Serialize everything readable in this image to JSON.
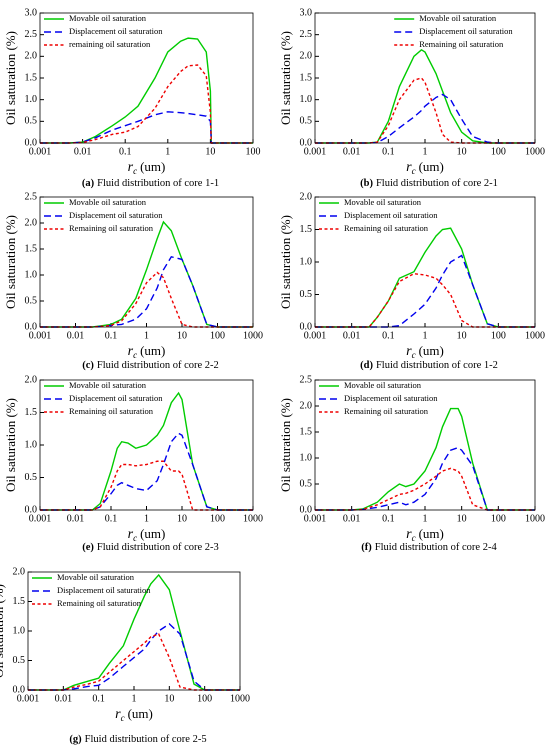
{
  "chart_data": [
    {
      "type": "line",
      "label": "(a)",
      "caption": "Fluid distribution of core 1-1",
      "ylabel": "Oil saturation (%)",
      "xlabel_var": "r",
      "xlabel_sub": "c",
      "xlabel_unit": "(um)",
      "xlog": true,
      "legend": "upper left",
      "xlim": [
        0.001,
        100
      ],
      "xticks": [
        0.001,
        0.01,
        0.1,
        1,
        10,
        100
      ],
      "ylim": [
        0,
        3
      ],
      "yticks": [
        {
          "value": 0,
          "label": "0.0"
        },
        {
          "value": 0.5,
          "label": "0.5"
        },
        {
          "value": 1,
          "label": "1.0"
        },
        {
          "value": 1.5,
          "label": "1.5"
        },
        {
          "value": 2,
          "label": "2.0"
        },
        {
          "value": 2.5,
          "label": "2.5"
        },
        {
          "value": 3,
          "label": "3.0"
        }
      ],
      "x": [
        0.001,
        0.005,
        0.01,
        0.02,
        0.05,
        0.1,
        0.2,
        0.5,
        1,
        2,
        3,
        5,
        8,
        10,
        10.5,
        20,
        100
      ],
      "series": [
        {
          "name": "Movable oil saturation",
          "color": "#00cc00",
          "linestyle": "solid",
          "values": [
            0,
            0,
            0.02,
            0.15,
            0.4,
            0.6,
            0.85,
            1.5,
            2.1,
            2.35,
            2.42,
            2.4,
            2.1,
            1.2,
            0,
            0,
            0
          ]
        },
        {
          "name": "Displacement oil saturation",
          "color": "#0000ee",
          "linestyle": "dashed",
          "values": [
            0,
            0,
            0.02,
            0.12,
            0.3,
            0.4,
            0.5,
            0.65,
            0.72,
            0.7,
            0.68,
            0.65,
            0.62,
            0.5,
            0,
            0,
            0
          ]
        },
        {
          "name": "remaining oil saturation",
          "color": "#ee0000",
          "linestyle": "dotted",
          "values": [
            0,
            0,
            0.01,
            0.08,
            0.2,
            0.25,
            0.38,
            0.8,
            1.3,
            1.65,
            1.78,
            1.8,
            1.55,
            0.7,
            0,
            0,
            0
          ]
        }
      ]
    },
    {
      "type": "line",
      "label": "(b)",
      "caption": "Fluid distribution of core 2-1",
      "ylabel": "Oil saturation (%)",
      "xlabel_var": "r",
      "xlabel_sub": "c",
      "xlabel_unit": "(um)",
      "xlog": true,
      "legend": "upper right",
      "xlim": [
        0.001,
        1000
      ],
      "xticks": [
        0.001,
        0.01,
        0.1,
        1,
        10,
        100,
        1000
      ],
      "ylim": [
        0,
        3
      ],
      "yticks": [
        {
          "value": 0,
          "label": "0.0"
        },
        {
          "value": 0.5,
          "label": "0.5"
        },
        {
          "value": 1,
          "label": "1.0"
        },
        {
          "value": 1.5,
          "label": "1.5"
        },
        {
          "value": 2,
          "label": "2.0"
        },
        {
          "value": 2.5,
          "label": "2.5"
        },
        {
          "value": 3,
          "label": "3.0"
        }
      ],
      "x": [
        0.001,
        0.03,
        0.05,
        0.1,
        0.2,
        0.5,
        0.8,
        1,
        2,
        3,
        5,
        10,
        20,
        50,
        100,
        1000
      ],
      "series": [
        {
          "name": "Movable oil saturation",
          "color": "#00cc00",
          "linestyle": "solid",
          "values": [
            0,
            0,
            0.02,
            0.5,
            1.3,
            2.0,
            2.15,
            2.1,
            1.6,
            1.2,
            0.7,
            0.25,
            0.05,
            0,
            0,
            0
          ]
        },
        {
          "name": "Displacement oil saturation",
          "color": "#0000ee",
          "linestyle": "dashed",
          "values": [
            0,
            0,
            0.01,
            0.15,
            0.35,
            0.6,
            0.75,
            0.85,
            1.05,
            1.12,
            1.0,
            0.55,
            0.15,
            0.02,
            0,
            0
          ]
        },
        {
          "name": "Remaining oil saturation",
          "color": "#ee0000",
          "linestyle": "dotted",
          "values": [
            0,
            0,
            0.02,
            0.4,
            1.0,
            1.45,
            1.5,
            1.4,
            0.7,
            0.2,
            0.02,
            0,
            0,
            0,
            0,
            0
          ]
        }
      ]
    },
    {
      "type": "line",
      "label": "(c)",
      "caption": "Fluid distribution of core 2-2",
      "ylabel": "Oil saturation (%)",
      "xlabel_var": "r",
      "xlabel_sub": "c",
      "xlabel_unit": "(um)",
      "xlog": true,
      "legend": "upper left",
      "xlim": [
        0.001,
        1000
      ],
      "xticks": [
        0.001,
        0.01,
        0.1,
        1,
        10,
        100,
        1000
      ],
      "ylim": [
        0,
        2.5
      ],
      "yticks": [
        {
          "value": 0,
          "label": "0.0"
        },
        {
          "value": 0.5,
          "label": "0.5"
        },
        {
          "value": 1,
          "label": "1.0"
        },
        {
          "value": 1.5,
          "label": "1.5"
        },
        {
          "value": 2,
          "label": "2.0"
        },
        {
          "value": 2.5,
          "label": "2.5"
        }
      ],
      "x": [
        0.001,
        0.03,
        0.05,
        0.1,
        0.2,
        0.5,
        1,
        2,
        3,
        5,
        10,
        20,
        50,
        100,
        1000
      ],
      "series": [
        {
          "name": "Movable oil saturation",
          "color": "#00cc00",
          "linestyle": "solid",
          "values": [
            0,
            0,
            0.02,
            0.05,
            0.15,
            0.55,
            1.1,
            1.7,
            2.02,
            1.85,
            1.3,
            0.8,
            0.05,
            0,
            0
          ]
        },
        {
          "name": "Displacement oil saturation",
          "color": "#0000ee",
          "linestyle": "dashed",
          "values": [
            0,
            0,
            0.01,
            0.03,
            0.05,
            0.15,
            0.35,
            0.75,
            1.1,
            1.35,
            1.3,
            0.8,
            0.05,
            0,
            0
          ]
        },
        {
          "name": "Remaining oil saturation",
          "color": "#ee0000",
          "linestyle": "dotted",
          "values": [
            0,
            0,
            0.01,
            0.03,
            0.12,
            0.45,
            0.85,
            1.05,
            0.95,
            0.55,
            0.05,
            0,
            0,
            0,
            0
          ]
        }
      ]
    },
    {
      "type": "line",
      "label": "(d)",
      "caption": "Fluid distribution of core 1-2",
      "ylabel": "Oil saturation (%)",
      "xlabel_var": "r",
      "xlabel_sub": "c",
      "xlabel_unit": "(um)",
      "xlog": true,
      "legend": "upper left",
      "xlim": [
        0.001,
        1000
      ],
      "xticks": [
        0.001,
        0.01,
        0.1,
        1,
        10,
        100,
        1000
      ],
      "ylim": [
        0,
        2
      ],
      "yticks": [
        {
          "value": 0,
          "label": "0.0"
        },
        {
          "value": 0.5,
          "label": "0.5"
        },
        {
          "value": 1,
          "label": "1.0"
        },
        {
          "value": 1.5,
          "label": "1.5"
        },
        {
          "value": 2,
          "label": "2.0"
        }
      ],
      "x": [
        0.001,
        0.03,
        0.05,
        0.1,
        0.2,
        0.5,
        1,
        2,
        3,
        5,
        10,
        20,
        50,
        100,
        1000
      ],
      "series": [
        {
          "name": "Movable oil saturation",
          "color": "#00cc00",
          "linestyle": "solid",
          "values": [
            0,
            0,
            0.15,
            0.4,
            0.75,
            0.85,
            1.15,
            1.4,
            1.5,
            1.52,
            1.2,
            0.65,
            0.05,
            0,
            0
          ]
        },
        {
          "name": "Displacement oil saturation",
          "color": "#0000ee",
          "linestyle": "dashed",
          "values": [
            0,
            0,
            0,
            0,
            0.02,
            0.2,
            0.35,
            0.6,
            0.8,
            1.0,
            1.1,
            0.65,
            0.05,
            0,
            0
          ]
        },
        {
          "name": "Remaining oil saturation",
          "color": "#ee0000",
          "linestyle": "dotted",
          "values": [
            0,
            0,
            0.15,
            0.4,
            0.7,
            0.82,
            0.8,
            0.75,
            0.65,
            0.5,
            0.1,
            0,
            0,
            0,
            0
          ]
        }
      ]
    },
    {
      "type": "line",
      "label": "(e)",
      "caption": "Fluid distribution of core 2-3",
      "ylabel": "Oil saturation (%)",
      "xlabel_var": "r",
      "xlabel_sub": "c",
      "xlabel_unit": "(um)",
      "xlog": true,
      "legend": "upper left",
      "xlim": [
        0.001,
        1000
      ],
      "xticks": [
        0.001,
        0.01,
        0.1,
        1,
        10,
        100,
        1000
      ],
      "ylim": [
        0,
        2
      ],
      "yticks": [
        {
          "value": 0,
          "label": "0.0"
        },
        {
          "value": 0.5,
          "label": "0.5"
        },
        {
          "value": 1,
          "label": "1.0"
        },
        {
          "value": 1.5,
          "label": "1.5"
        },
        {
          "value": 2,
          "label": "2.0"
        }
      ],
      "x": [
        0.001,
        0.03,
        0.05,
        0.1,
        0.15,
        0.2,
        0.3,
        0.5,
        1,
        2,
        3,
        5,
        8,
        10,
        20,
        50,
        100,
        1000
      ],
      "series": [
        {
          "name": "Movable oil saturation",
          "color": "#00cc00",
          "linestyle": "solid",
          "values": [
            0,
            0,
            0.1,
            0.6,
            0.95,
            1.05,
            1.03,
            0.95,
            1.0,
            1.15,
            1.3,
            1.65,
            1.8,
            1.7,
            0.7,
            0.05,
            0,
            0
          ]
        },
        {
          "name": "Displacement oil saturation",
          "color": "#0000ee",
          "linestyle": "dashed",
          "values": [
            0,
            0,
            0.05,
            0.25,
            0.38,
            0.42,
            0.38,
            0.33,
            0.3,
            0.45,
            0.7,
            1.05,
            1.18,
            1.15,
            0.7,
            0.05,
            0,
            0
          ]
        },
        {
          "name": "Remaining oil saturation",
          "color": "#ee0000",
          "linestyle": "dotted",
          "values": [
            0,
            0,
            0.05,
            0.35,
            0.6,
            0.7,
            0.7,
            0.68,
            0.7,
            0.75,
            0.75,
            0.6,
            0.6,
            0.55,
            0,
            0,
            0,
            0
          ]
        }
      ]
    },
    {
      "type": "line",
      "label": "(f)",
      "caption": "Fluid distribution of core 2-4",
      "ylabel": "Oil saturation (%)",
      "xlabel_var": "r",
      "xlabel_sub": "c",
      "xlabel_unit": "(um)",
      "xlog": true,
      "legend": "upper left",
      "xlim": [
        0.001,
        1000
      ],
      "xticks": [
        0.001,
        0.01,
        0.1,
        1,
        10,
        100,
        1000
      ],
      "ylim": [
        0,
        2.5
      ],
      "yticks": [
        {
          "value": 0,
          "label": "0.0"
        },
        {
          "value": 0.5,
          "label": "0.5"
        },
        {
          "value": 1,
          "label": "1.0"
        },
        {
          "value": 1.5,
          "label": "1.5"
        },
        {
          "value": 2,
          "label": "2.0"
        },
        {
          "value": 2.5,
          "label": "2.5"
        }
      ],
      "x": [
        0.001,
        0.01,
        0.02,
        0.05,
        0.1,
        0.2,
        0.3,
        0.5,
        1,
        2,
        3,
        5,
        8,
        10,
        20,
        50,
        100,
        1000
      ],
      "series": [
        {
          "name": "Movable oil saturation",
          "color": "#00cc00",
          "linestyle": "solid",
          "values": [
            0,
            0,
            0.02,
            0.15,
            0.35,
            0.5,
            0.45,
            0.5,
            0.75,
            1.2,
            1.6,
            1.95,
            1.95,
            1.8,
            0.9,
            0,
            0,
            0
          ]
        },
        {
          "name": "Displacement oil saturation",
          "color": "#0000ee",
          "linestyle": "dashed",
          "values": [
            0,
            0,
            0.01,
            0.05,
            0.1,
            0.15,
            0.1,
            0.15,
            0.3,
            0.6,
            0.9,
            1.15,
            1.2,
            1.15,
            0.85,
            0,
            0,
            0
          ]
        },
        {
          "name": "Remaining oil saturation",
          "color": "#ee0000",
          "linestyle": "dotted",
          "values": [
            0,
            0,
            0.01,
            0.1,
            0.2,
            0.3,
            0.32,
            0.38,
            0.5,
            0.65,
            0.75,
            0.8,
            0.75,
            0.65,
            0.1,
            0,
            0,
            0
          ]
        }
      ]
    },
    {
      "type": "line",
      "label": "(g)",
      "caption": "Fluid distribution of core 2-5",
      "ylabel": "Oil saturation (%)",
      "xlabel_var": "r",
      "xlabel_sub": "c",
      "xlabel_unit": "(um)",
      "xlog": true,
      "legend": "upper left",
      "xlim": [
        0.001,
        1000
      ],
      "xticks": [
        0.001,
        0.01,
        0.1,
        1,
        10,
        100,
        1000
      ],
      "ylim": [
        0,
        2
      ],
      "yticks": [
        {
          "value": 0,
          "label": "0.0"
        },
        {
          "value": 0.5,
          "label": "0.5"
        },
        {
          "value": 1,
          "label": "1.0"
        },
        {
          "value": 1.5,
          "label": "1.5"
        },
        {
          "value": 2,
          "label": "2.0"
        }
      ],
      "x": [
        0.001,
        0.01,
        0.02,
        0.05,
        0.1,
        0.2,
        0.5,
        1,
        2,
        3,
        5,
        10,
        20,
        50,
        100,
        1000
      ],
      "series": [
        {
          "name": "Movable oil saturation",
          "color": "#00cc00",
          "linestyle": "solid",
          "values": [
            0,
            0,
            0.08,
            0.15,
            0.2,
            0.45,
            0.75,
            1.2,
            1.6,
            1.8,
            1.95,
            1.7,
            1.0,
            0.1,
            0,
            0
          ]
        },
        {
          "name": "Displacement oil saturation",
          "color": "#0000ee",
          "linestyle": "dashed",
          "values": [
            0,
            0,
            0.02,
            0.06,
            0.08,
            0.2,
            0.4,
            0.55,
            0.7,
            0.85,
            1.0,
            1.12,
            0.95,
            0.15,
            0,
            0
          ]
        },
        {
          "name": "Remaining oil saturation",
          "color": "#ee0000",
          "linestyle": "dotted",
          "values": [
            0,
            0,
            0.05,
            0.1,
            0.15,
            0.3,
            0.5,
            0.65,
            0.8,
            0.9,
            0.95,
            0.55,
            0.05,
            0,
            0,
            0
          ]
        }
      ]
    }
  ]
}
